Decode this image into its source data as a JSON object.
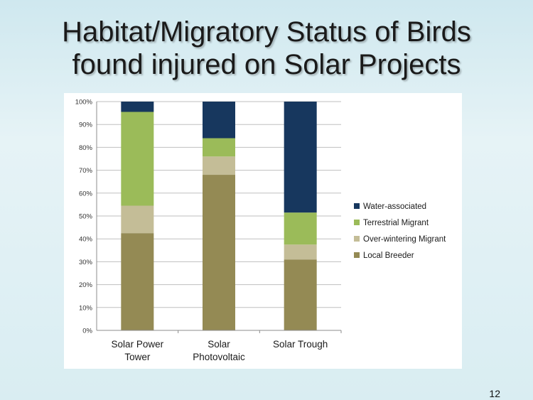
{
  "slide": {
    "title_line1": "Habitat/Migratory Status of Birds",
    "title_line2": "found injured on Solar Projects",
    "page_number": "12"
  },
  "chart_data": {
    "type": "bar",
    "stacked": true,
    "title": "",
    "xlabel": "",
    "ylabel": "",
    "ylim": [
      0,
      100
    ],
    "y_ticks": [
      "0%",
      "10%",
      "20%",
      "30%",
      "40%",
      "50%",
      "60%",
      "70%",
      "80%",
      "90%",
      "100%"
    ],
    "categories": [
      [
        "Solar Power",
        "Tower"
      ],
      [
        "Solar",
        "Photovoltaic"
      ],
      [
        "Solar Trough"
      ]
    ],
    "series": [
      {
        "name": "Local Breeder",
        "color": "#948a54",
        "values": [
          42.5,
          68,
          31
        ]
      },
      {
        "name": "Over-wintering Migrant",
        "color": "#c4bd97",
        "values": [
          12,
          8,
          6.5
        ]
      },
      {
        "name": "Terrestrial Migrant",
        "color": "#9bbb59",
        "values": [
          41,
          8,
          14
        ]
      },
      {
        "name": "Water-associated",
        "color": "#17375e",
        "values": [
          4.5,
          16,
          48.5
        ]
      }
    ],
    "legend_order": [
      "Water-associated",
      "Terrestrial Migrant",
      "Over-wintering Migrant",
      "Local Breeder"
    ],
    "legend_position": "right",
    "grid": true
  }
}
